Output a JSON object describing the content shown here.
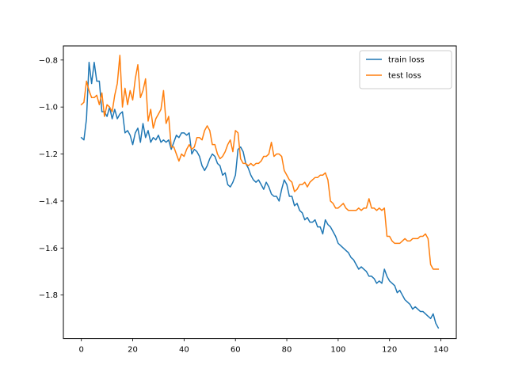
{
  "chart_data": {
    "type": "line",
    "title": "",
    "xlabel": "",
    "ylabel": "",
    "xlim": [
      -7,
      146
    ],
    "ylim": [
      -1.985,
      -0.74
    ],
    "xticks": [
      0,
      20,
      40,
      60,
      80,
      100,
      120,
      140
    ],
    "yticks": [
      -0.8,
      -1.0,
      -1.2,
      -1.4,
      -1.6,
      -1.8
    ],
    "grid": false,
    "legend_position": "top-right",
    "series": [
      {
        "name": "train loss",
        "color": "#1f77b4",
        "x": [
          0,
          1,
          2,
          3,
          4,
          5,
          6,
          7,
          8,
          9,
          10,
          11,
          12,
          13,
          14,
          15,
          16,
          17,
          18,
          19,
          20,
          21,
          22,
          23,
          24,
          25,
          26,
          27,
          28,
          29,
          30,
          31,
          32,
          33,
          34,
          35,
          36,
          37,
          38,
          39,
          40,
          41,
          42,
          43,
          44,
          45,
          46,
          47,
          48,
          49,
          50,
          51,
          52,
          53,
          54,
          55,
          56,
          57,
          58,
          59,
          60,
          61,
          62,
          63,
          64,
          65,
          66,
          67,
          68,
          69,
          70,
          71,
          72,
          73,
          74,
          75,
          76,
          77,
          78,
          79,
          80,
          81,
          82,
          83,
          84,
          85,
          86,
          87,
          88,
          89,
          90,
          91,
          92,
          93,
          94,
          95,
          96,
          97,
          98,
          99,
          100,
          101,
          102,
          103,
          104,
          105,
          106,
          107,
          108,
          109,
          110,
          111,
          112,
          113,
          114,
          115,
          116,
          117,
          118,
          119,
          120,
          121,
          122,
          123,
          124,
          125,
          126,
          127,
          128,
          129,
          130,
          131,
          132,
          133,
          134,
          135,
          136,
          137,
          138,
          139
        ],
        "y": [
          -1.13,
          -1.14,
          -1.05,
          -0.81,
          -0.9,
          -0.81,
          -0.89,
          -0.89,
          -1.02,
          -1.02,
          -1.04,
          -1.0,
          -1.05,
          -1.01,
          -1.05,
          -1.03,
          -1.02,
          -1.11,
          -1.1,
          -1.12,
          -1.16,
          -1.11,
          -1.09,
          -1.15,
          -1.07,
          -1.13,
          -1.1,
          -1.15,
          -1.13,
          -1.14,
          -1.12,
          -1.15,
          -1.14,
          -1.15,
          -1.14,
          -1.18,
          -1.15,
          -1.12,
          -1.13,
          -1.11,
          -1.11,
          -1.12,
          -1.11,
          -1.2,
          -1.18,
          -1.19,
          -1.21,
          -1.25,
          -1.27,
          -1.25,
          -1.22,
          -1.2,
          -1.21,
          -1.24,
          -1.25,
          -1.29,
          -1.28,
          -1.33,
          -1.34,
          -1.32,
          -1.29,
          -1.18,
          -1.17,
          -1.19,
          -1.24,
          -1.26,
          -1.29,
          -1.31,
          -1.32,
          -1.31,
          -1.33,
          -1.35,
          -1.32,
          -1.34,
          -1.37,
          -1.38,
          -1.38,
          -1.4,
          -1.35,
          -1.31,
          -1.33,
          -1.38,
          -1.38,
          -1.42,
          -1.41,
          -1.44,
          -1.45,
          -1.48,
          -1.47,
          -1.49,
          -1.49,
          -1.48,
          -1.51,
          -1.51,
          -1.54,
          -1.48,
          -1.5,
          -1.51,
          -1.53,
          -1.55,
          -1.58,
          -1.59,
          -1.6,
          -1.61,
          -1.62,
          -1.64,
          -1.65,
          -1.67,
          -1.69,
          -1.68,
          -1.69,
          -1.7,
          -1.72,
          -1.72,
          -1.73,
          -1.75,
          -1.74,
          -1.75,
          -1.69,
          -1.72,
          -1.74,
          -1.75,
          -1.76,
          -1.79,
          -1.78,
          -1.8,
          -1.82,
          -1.83,
          -1.84,
          -1.86,
          -1.85,
          -1.86,
          -1.87,
          -1.87,
          -1.88,
          -1.89,
          -1.9,
          -1.88,
          -1.92,
          -1.94
        ]
      },
      {
        "name": "test loss",
        "color": "#ff7f0e",
        "x": [
          0,
          1,
          2,
          3,
          4,
          5,
          6,
          7,
          8,
          9,
          10,
          11,
          12,
          13,
          14,
          15,
          16,
          17,
          18,
          19,
          20,
          21,
          22,
          23,
          24,
          25,
          26,
          27,
          28,
          29,
          30,
          31,
          32,
          33,
          34,
          35,
          36,
          37,
          38,
          39,
          40,
          41,
          42,
          43,
          44,
          45,
          46,
          47,
          48,
          49,
          50,
          51,
          52,
          53,
          54,
          55,
          56,
          57,
          58,
          59,
          60,
          61,
          62,
          63,
          64,
          65,
          66,
          67,
          68,
          69,
          70,
          71,
          72,
          73,
          74,
          75,
          76,
          77,
          78,
          79,
          80,
          81,
          82,
          83,
          84,
          85,
          86,
          87,
          88,
          89,
          90,
          91,
          92,
          93,
          94,
          95,
          96,
          97,
          98,
          99,
          100,
          101,
          102,
          103,
          104,
          105,
          106,
          107,
          108,
          109,
          110,
          111,
          112,
          113,
          114,
          115,
          116,
          117,
          118,
          119,
          120,
          121,
          122,
          123,
          124,
          125,
          126,
          127,
          128,
          129,
          130,
          131,
          132,
          133,
          134,
          135,
          136,
          137,
          138,
          139
        ],
        "y": [
          -0.99,
          -0.98,
          -0.89,
          -0.93,
          -0.96,
          -0.96,
          -0.95,
          -0.99,
          -0.94,
          -1.04,
          -0.99,
          -1.0,
          -1.02,
          -0.95,
          -0.9,
          -0.78,
          -1.0,
          -0.92,
          -0.99,
          -0.93,
          -0.97,
          -0.88,
          -0.82,
          -0.96,
          -0.93,
          -0.88,
          -1.06,
          -1.01,
          -1.09,
          -1.05,
          -1.03,
          -1.01,
          -0.93,
          -1.07,
          -1.04,
          -1.17,
          -1.17,
          -1.2,
          -1.23,
          -1.2,
          -1.21,
          -1.18,
          -1.16,
          -1.18,
          -1.17,
          -1.13,
          -1.13,
          -1.14,
          -1.1,
          -1.08,
          -1.1,
          -1.16,
          -1.16,
          -1.2,
          -1.22,
          -1.21,
          -1.19,
          -1.16,
          -1.14,
          -1.19,
          -1.1,
          -1.11,
          -1.22,
          -1.24,
          -1.24,
          -1.25,
          -1.24,
          -1.25,
          -1.24,
          -1.24,
          -1.23,
          -1.21,
          -1.21,
          -1.2,
          -1.15,
          -1.21,
          -1.2,
          -1.2,
          -1.21,
          -1.27,
          -1.29,
          -1.31,
          -1.32,
          -1.36,
          -1.35,
          -1.33,
          -1.33,
          -1.32,
          -1.34,
          -1.32,
          -1.31,
          -1.3,
          -1.3,
          -1.29,
          -1.29,
          -1.28,
          -1.31,
          -1.4,
          -1.41,
          -1.43,
          -1.43,
          -1.42,
          -1.41,
          -1.43,
          -1.44,
          -1.44,
          -1.44,
          -1.44,
          -1.43,
          -1.44,
          -1.43,
          -1.43,
          -1.39,
          -1.43,
          -1.43,
          -1.44,
          -1.43,
          -1.44,
          -1.43,
          -1.55,
          -1.55,
          -1.57,
          -1.58,
          -1.58,
          -1.58,
          -1.57,
          -1.56,
          -1.57,
          -1.57,
          -1.56,
          -1.56,
          -1.56,
          -1.55,
          -1.55,
          -1.54,
          -1.56,
          -1.67,
          -1.69,
          -1.69,
          -1.69
        ]
      }
    ]
  }
}
